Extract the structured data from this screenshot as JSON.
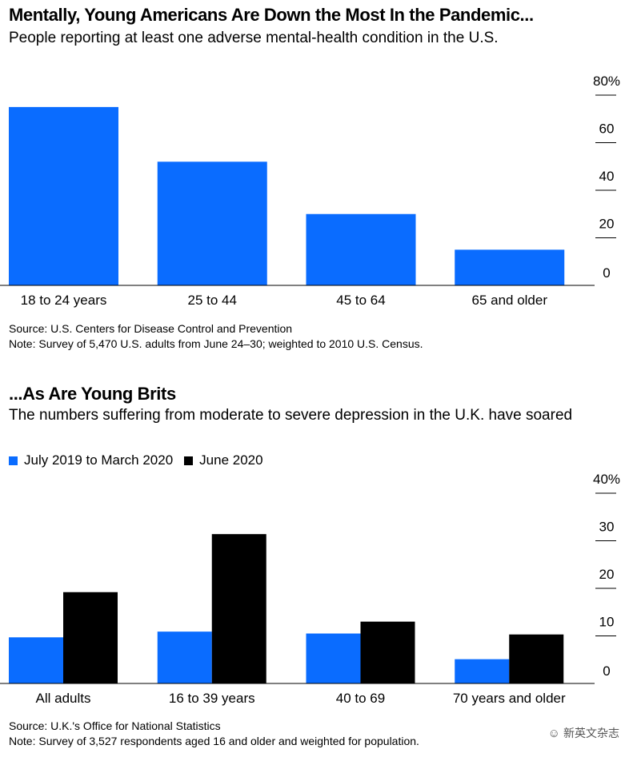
{
  "chart1": {
    "title": "Mentally, Young Americans Are Down the Most In the Pandemic...",
    "subtitle": "People reporting at least one adverse mental-health condition in the U.S.",
    "source": "Source: U.S. Centers for Disease Control and Prevention",
    "note": "Note: Survey of 5,470 U.S. adults from June 24–30; weighted to 2010 U.S. Census."
  },
  "chart2": {
    "title": "...As Are Young Brits",
    "subtitle": "The numbers suffering from moderate to severe depression in the U.K. have soared",
    "source": "Source: U.K.'s Office for National Statistics",
    "note": "Note: Survey of 3,527 respondents aged 16 and older and weighted for population."
  },
  "watermark": "新英文杂志",
  "chart_data": [
    {
      "type": "bar",
      "title": "Mentally, Young Americans Are Down the Most In the Pandemic...",
      "subtitle": "People reporting at least one adverse mental-health condition in the U.S.",
      "categories": [
        "18 to 24 years",
        "25 to 44",
        "45 to 64",
        "65 and older"
      ],
      "series": [
        {
          "color": "#0a6cff",
          "values": [
            75,
            52,
            30,
            15
          ]
        }
      ],
      "ylim": [
        0,
        80
      ],
      "yticks": [
        0,
        20,
        40,
        60,
        80
      ],
      "ytick_labels": [
        "0",
        "20",
        "40",
        "60",
        "80%"
      ],
      "grid": false,
      "axis_side": "right"
    },
    {
      "type": "bar",
      "title": "...As Are Young Brits",
      "subtitle": "The numbers suffering from moderate to severe depression in the U.K. have soared",
      "categories": [
        "All adults",
        "16 to 39 years",
        "40 to 69",
        "70 years and older"
      ],
      "series": [
        {
          "name": "July 2019 to March 2020",
          "color": "#0a6cff",
          "values": [
            9.7,
            10.9,
            10.5,
            5.1
          ]
        },
        {
          "name": "June 2020",
          "color": "#000000",
          "values": [
            19.2,
            31.4,
            13,
            10.3
          ]
        }
      ],
      "ylim": [
        0,
        40
      ],
      "yticks": [
        0,
        10,
        20,
        30,
        40
      ],
      "ytick_labels": [
        "0",
        "10",
        "20",
        "30",
        "40%"
      ],
      "grid": false,
      "legend_position": "top-left",
      "axis_side": "right"
    }
  ]
}
